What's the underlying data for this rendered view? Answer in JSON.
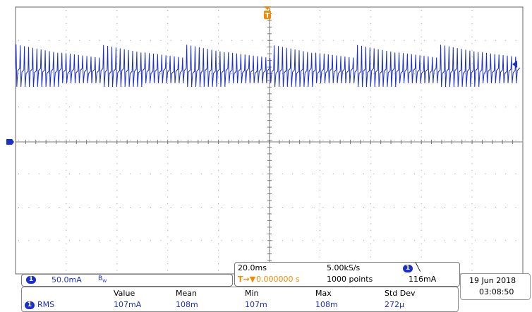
{
  "channel": {
    "number": "1",
    "scale": "50.0mA",
    "bandwidth_icon": "bandwidth-limit-icon",
    "color": "#1a2fd1"
  },
  "trigger": {
    "marker_label": "T",
    "position": "0.000000 s",
    "level": "116mA",
    "source": "1",
    "slope_icon": "falling-edge-icon",
    "color": "#f08a00"
  },
  "acquisition": {
    "timebase": "20.0ms",
    "sample_rate": "5.00kS/s",
    "record_length": "1000 points"
  },
  "datetime": {
    "date": "19 Jun  2018",
    "time": "03:08:50"
  },
  "measurements": {
    "headers": [
      "Value",
      "Mean",
      "Min",
      "Max",
      "Std Dev"
    ],
    "rows": [
      {
        "source": "1",
        "type": "RMS",
        "value": "107mA",
        "mean": "108m",
        "min": "107m",
        "max": "108m",
        "std_dev": "272µ"
      }
    ]
  }
}
